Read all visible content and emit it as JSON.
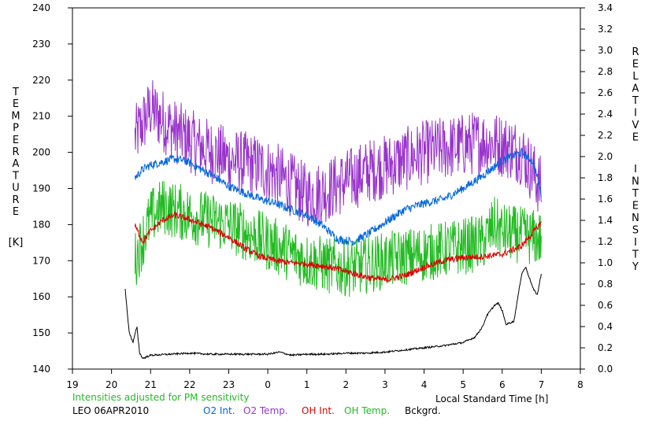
{
  "chart_data": {
    "type": "line",
    "title": "",
    "xlabel": "Local Standard Time [h]",
    "ylabel_left": "TEMPERATURE [K]",
    "ylabel_right": "RELATIVE INTENSITY",
    "left_axis_title": {
      "letters": [
        "T",
        "E",
        "M",
        "P",
        "E",
        "R",
        "A",
        "T",
        "U",
        "R",
        "E"
      ],
      "unit": "[K]"
    },
    "right_axis_title": {
      "word1": [
        "R",
        "E",
        "L",
        "A",
        "T",
        "I",
        "V",
        "E"
      ],
      "word2": [
        "I",
        "N",
        "T",
        "E",
        "N",
        "S",
        "I",
        "T",
        "Y"
      ]
    },
    "x_range": [
      19,
      32
    ],
    "x_ticks": [
      19,
      20,
      21,
      22,
      23,
      24,
      25,
      26,
      27,
      28,
      29,
      30,
      31,
      32
    ],
    "x_tick_labels": [
      "19",
      "20",
      "21",
      "22",
      "23",
      "0",
      "1",
      "2",
      "3",
      "4",
      "5",
      "6",
      "7",
      "8"
    ],
    "ylim_left": [
      140,
      240
    ],
    "y_ticks_left": [
      "140",
      "150",
      "160",
      "170",
      "180",
      "190",
      "200",
      "210",
      "220",
      "230",
      "240"
    ],
    "ylim_right": [
      0,
      3.4
    ],
    "y_ticks_right": [
      "0.0",
      "0.2",
      "0.4",
      "0.6",
      "0.8",
      "1.0",
      "1.2",
      "1.4",
      "1.6",
      "1.8",
      "2.0",
      "2.2",
      "2.4",
      "2.6",
      "2.8",
      "3.0",
      "3.2",
      "3.4"
    ],
    "note": "Intensities adjusted for PM sensitivity",
    "station": "LEO 06APR2010",
    "legend": [
      {
        "name": "O2 Int.",
        "color": "#0066dd"
      },
      {
        "name": "O2 Temp.",
        "color": "#9933cc"
      },
      {
        "name": "OH Int.",
        "color": "#dd0000"
      },
      {
        "name": "OH Temp.",
        "color": "#22bb22"
      },
      {
        "name": "Bckgrd.",
        "color": "#000000"
      }
    ],
    "series": [
      {
        "name": "O2 Temp.",
        "axis": "left",
        "color": "#9933cc",
        "noise": 9,
        "x": [
          20.6,
          20.8,
          21.0,
          21.3,
          21.6,
          21.9,
          22.2,
          22.6,
          23.0,
          23.4,
          23.8,
          24.2,
          24.6,
          25.0,
          25.4,
          25.8,
          26.2,
          26.6,
          27.0,
          27.5,
          28.0,
          28.5,
          29.0,
          29.5,
          30.0,
          30.5,
          31.0
        ],
        "y": [
          204,
          208,
          212,
          209,
          206,
          204,
          202,
          200,
          198,
          197,
          196,
          194,
          191,
          188,
          189,
          191,
          193,
          195,
          196,
          198,
          200,
          201,
          202,
          203,
          202,
          200,
          190
        ]
      },
      {
        "name": "O2 Int.",
        "axis": "right",
        "color": "#0066dd",
        "noise": 0.04,
        "x": [
          20.6,
          20.8,
          21.0,
          21.3,
          21.6,
          21.9,
          22.2,
          22.6,
          23.0,
          23.4,
          23.8,
          24.2,
          24.6,
          25.0,
          25.4,
          25.8,
          26.2,
          26.6,
          27.0,
          27.5,
          28.0,
          28.5,
          29.0,
          29.5,
          30.0,
          30.5,
          30.8,
          31.0
        ],
        "y": [
          1.8,
          1.88,
          1.92,
          1.95,
          1.98,
          1.96,
          1.9,
          1.82,
          1.72,
          1.66,
          1.6,
          1.56,
          1.5,
          1.45,
          1.35,
          1.22,
          1.2,
          1.28,
          1.38,
          1.5,
          1.56,
          1.6,
          1.7,
          1.82,
          1.96,
          2.04,
          1.95,
          1.65
        ]
      },
      {
        "name": "OH Temp.",
        "axis": "left",
        "color": "#22bb22",
        "noise": 8,
        "x": [
          20.6,
          20.8,
          21.0,
          21.3,
          21.6,
          21.9,
          22.2,
          22.6,
          23.0,
          23.4,
          23.8,
          24.2,
          24.6,
          25.0,
          25.4,
          25.8,
          26.2,
          26.6,
          27.0,
          27.5,
          28.0,
          28.5,
          29.0,
          29.5,
          29.8,
          30.0,
          30.5,
          31.0
        ],
        "y": [
          170,
          176,
          182,
          185,
          184,
          183,
          182,
          181,
          180,
          178,
          176,
          174,
          172,
          170,
          169,
          168,
          168,
          169,
          170,
          171,
          172,
          173,
          174,
          175,
          180,
          178,
          177,
          176
        ]
      },
      {
        "name": "OH Int.",
        "axis": "right",
        "color": "#dd0000",
        "noise": 0.03,
        "x": [
          20.6,
          20.8,
          21.0,
          21.3,
          21.6,
          21.9,
          22.2,
          22.6,
          23.0,
          23.4,
          23.8,
          24.2,
          24.6,
          25.0,
          25.4,
          25.8,
          26.2,
          26.6,
          27.0,
          27.5,
          28.0,
          28.5,
          29.0,
          29.5,
          30.0,
          30.5,
          31.0
        ],
        "y": [
          1.35,
          1.2,
          1.3,
          1.4,
          1.45,
          1.42,
          1.38,
          1.32,
          1.24,
          1.14,
          1.06,
          1.02,
          1.0,
          0.99,
          0.97,
          0.94,
          0.9,
          0.86,
          0.84,
          0.88,
          0.96,
          1.02,
          1.05,
          1.06,
          1.08,
          1.16,
          1.38
        ]
      },
      {
        "name": "Bckgrd.",
        "axis": "right",
        "color": "#000000",
        "noise": 0.008,
        "x": [
          20.35,
          20.45,
          20.55,
          20.65,
          20.72,
          20.8,
          21.0,
          21.5,
          22.0,
          22.5,
          23.0,
          23.5,
          24.0,
          24.3,
          24.6,
          25.0,
          25.5,
          26.0,
          26.5,
          27.0,
          27.5,
          28.0,
          28.5,
          29.0,
          29.3,
          29.5,
          29.6,
          29.8,
          29.9,
          30.0,
          30.1,
          30.3,
          30.5,
          30.6,
          30.8,
          30.9,
          31.0
        ],
        "y": [
          0.75,
          0.35,
          0.25,
          0.4,
          0.15,
          0.1,
          0.13,
          0.14,
          0.15,
          0.14,
          0.14,
          0.14,
          0.14,
          0.16,
          0.13,
          0.14,
          0.14,
          0.15,
          0.15,
          0.16,
          0.18,
          0.2,
          0.22,
          0.25,
          0.3,
          0.4,
          0.5,
          0.6,
          0.62,
          0.55,
          0.42,
          0.45,
          0.9,
          0.96,
          0.75,
          0.7,
          0.9
        ]
      }
    ]
  }
}
